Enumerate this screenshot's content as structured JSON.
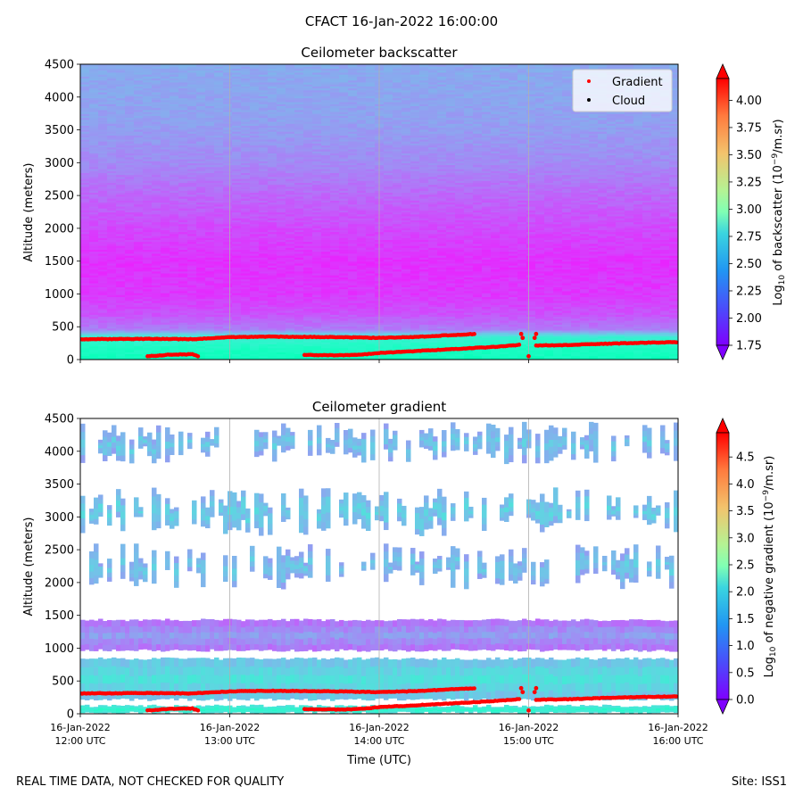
{
  "figure": {
    "suptitle": "CFACT 16-Jan-2022 16:00:00",
    "footer_left": "REAL TIME DATA, NOT CHECKED FOR QUALITY",
    "footer_right": "Site: ISS1"
  },
  "chart_data": [
    {
      "type": "heatmap",
      "title": "Ceilometer backscatter",
      "ylabel": "Altitude (meters)",
      "xlabel": "",
      "ylim": [
        0,
        4500
      ],
      "yticks": [
        0,
        500,
        1000,
        1500,
        2000,
        2500,
        3000,
        3500,
        4000,
        4500
      ],
      "xlim_hours": [
        12,
        16
      ],
      "xticks_hours": [
        12,
        13,
        14,
        15,
        16
      ],
      "xticklabels": [],
      "vertical_grid": true,
      "legend": {
        "placement": "top-right",
        "entries": [
          {
            "label": "Gradient",
            "color": "#ff0000"
          },
          {
            "label": "Cloud",
            "color": "#000000"
          }
        ]
      },
      "colorbar": {
        "label": "Log10 of backscatter (10^-9/m.sr)",
        "label_prefix": "Log",
        "label_sub": "10",
        "label_mid": " of backscatter (10",
        "label_sup": "−9",
        "label_suffix": "/m.sr)",
        "vmin": 1.75,
        "vmax": 4.2,
        "ticks": [
          "1.75",
          "2.00",
          "2.25",
          "2.50",
          "2.75",
          "3.00",
          "3.25",
          "3.50",
          "3.75",
          "4.00"
        ],
        "colormap": "rainbow",
        "extend": "both"
      },
      "field_profile": [
        {
          "altitude": 0,
          "value": 2.9
        },
        {
          "altitude": 150,
          "value": 2.85
        },
        {
          "altitude": 330,
          "value": 2.7
        },
        {
          "altitude": 450,
          "value": 2.15
        },
        {
          "altitude": 700,
          "value": 2.0
        },
        {
          "altitude": 1000,
          "value": 1.92
        },
        {
          "altitude": 1500,
          "value": 1.9
        },
        {
          "altitude": 2000,
          "value": 1.98
        },
        {
          "altitude": 2500,
          "value": 2.08
        },
        {
          "altitude": 3000,
          "value": 2.2
        },
        {
          "altitude": 3600,
          "value": 2.28
        },
        {
          "altitude": 4500,
          "value": 2.32
        }
      ],
      "gradient_points_altitude": [
        {
          "name": "upper-layer",
          "points": [
            [
              12.0,
              310
            ],
            [
              12.5,
              315
            ],
            [
              12.75,
              310
            ],
            [
              13.0,
              340
            ],
            [
              13.25,
              350
            ],
            [
              13.5,
              345
            ],
            [
              13.75,
              340
            ],
            [
              14.0,
              330
            ],
            [
              14.25,
              345
            ],
            [
              14.5,
              375
            ],
            [
              14.65,
              390
            ]
          ]
        },
        {
          "name": "upper-layer-late",
          "points": [
            [
              15.05,
              215
            ],
            [
              15.25,
              220
            ],
            [
              15.5,
              240
            ],
            [
              15.75,
              255
            ],
            [
              16.0,
              265
            ]
          ]
        },
        {
          "name": "lower-layer-early",
          "points": [
            [
              12.45,
              50
            ],
            [
              12.6,
              75
            ],
            [
              12.75,
              80
            ],
            [
              12.8,
              40
            ]
          ]
        },
        {
          "name": "lower-layer-mid",
          "points": [
            [
              13.5,
              70
            ],
            [
              13.75,
              65
            ],
            [
              13.85,
              70
            ],
            [
              14.0,
              100
            ],
            [
              14.25,
              130
            ],
            [
              14.5,
              160
            ],
            [
              14.75,
              190
            ],
            [
              14.95,
              225
            ]
          ]
        },
        {
          "name": "short-segments",
          "points": [
            [
              14.95,
              390
            ],
            [
              15.05,
              390
            ],
            [
              14.96,
              330
            ],
            [
              15.04,
              330
            ],
            [
              15.0,
              50
            ]
          ]
        }
      ]
    },
    {
      "type": "heatmap",
      "title": "Ceilometer gradient",
      "ylabel": "Altitude (meters)",
      "xlabel": "Time (UTC)",
      "ylim": [
        0,
        4500
      ],
      "yticks": [
        0,
        500,
        1000,
        1500,
        2000,
        2500,
        3000,
        3500,
        4000,
        4500
      ],
      "xlim_hours": [
        12,
        16
      ],
      "xticks_hours": [
        12,
        13,
        14,
        15,
        16
      ],
      "xticklabels": [
        {
          "date": "16-Jan-2022",
          "time": "12:00 UTC"
        },
        {
          "date": "16-Jan-2022",
          "time": "13:00 UTC"
        },
        {
          "date": "16-Jan-2022",
          "time": "14:00 UTC"
        },
        {
          "date": "16-Jan-2022",
          "time": "15:00 UTC"
        },
        {
          "date": "16-Jan-2022",
          "time": "16:00 UTC"
        }
      ],
      "vertical_grid": true,
      "colorbar": {
        "label": "Log10 of negative gradient (10^-9/m.sr)",
        "label_prefix": "Log",
        "label_sub": "10",
        "label_mid": " of negative gradient (10",
        "label_sup": "−9",
        "label_suffix": "/m.sr)",
        "vmin": 0.0,
        "vmax": 4.95,
        "ticks": [
          "0.0",
          "0.5",
          "1.0",
          "1.5",
          "2.0",
          "2.5",
          "3.0",
          "3.5",
          "4.0",
          "4.5"
        ],
        "colormap": "rainbow",
        "extend": "both"
      },
      "layers": [
        {
          "name": "surface",
          "altitude_range": [
            0,
            140
          ],
          "value": 1.9
        },
        {
          "name": "boundary",
          "altitude_range": [
            200,
            860
          ],
          "value": 1.55
        },
        {
          "name": "aerosol",
          "altitude_range": [
            950,
            1450
          ],
          "value": 0.9
        },
        {
          "name": "cloud-2000",
          "altitude_range": [
            1900,
            2600
          ],
          "value": 1.3
        },
        {
          "name": "cloud-3000",
          "altitude_range": [
            2700,
            3450
          ],
          "value": 1.4
        },
        {
          "name": "cloud-4000",
          "altitude_range": [
            3800,
            4450
          ],
          "value": 1.3
        }
      ],
      "gradient_points_altitude_ref": 0
    }
  ]
}
